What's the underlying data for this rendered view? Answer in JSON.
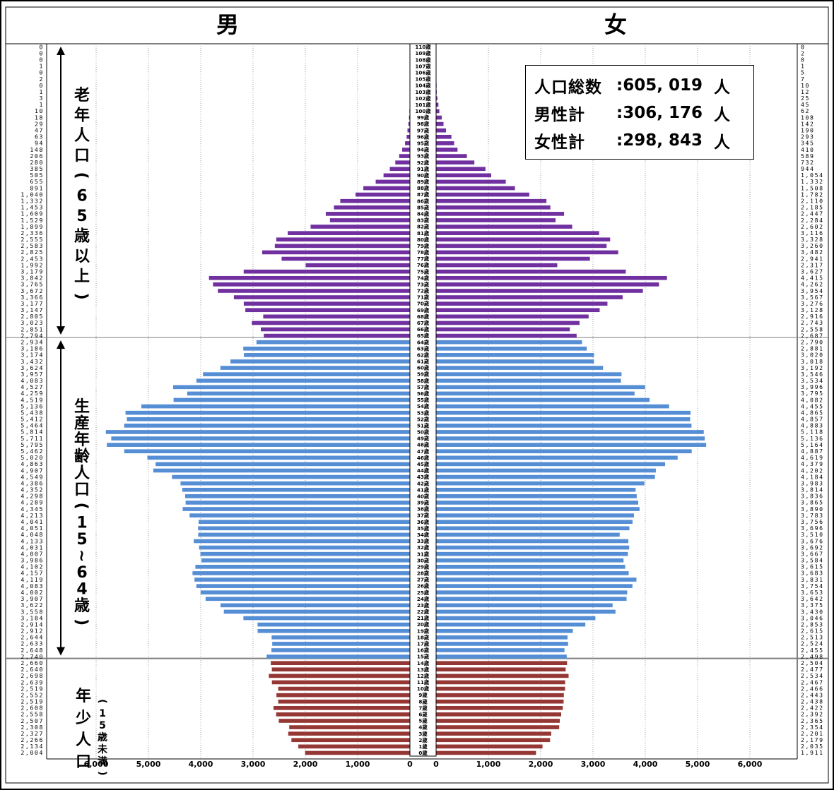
{
  "chart_data": {
    "type": "bar",
    "title_male": "男",
    "title_female": "女",
    "age_labels": [
      "0歳",
      "1歳",
      "2歳",
      "3歳",
      "4歳",
      "5歳",
      "6歳",
      "7歳",
      "8歳",
      "9歳",
      "10歳",
      "11歳",
      "12歳",
      "13歳",
      "14歳",
      "15歳",
      "16歳",
      "17歳",
      "18歳",
      "19歳",
      "20歳",
      "21歳",
      "22歳",
      "23歳",
      "24歳",
      "25歳",
      "26歳",
      "27歳",
      "28歳",
      "29歳",
      "30歳",
      "31歳",
      "32歳",
      "33歳",
      "34歳",
      "35歳",
      "36歳",
      "37歳",
      "38歳",
      "39歳",
      "40歳",
      "41歳",
      "42歳",
      "43歳",
      "44歳",
      "45歳",
      "46歳",
      "47歳",
      "48歳",
      "49歳",
      "50歳",
      "51歳",
      "52歳",
      "53歳",
      "54歳",
      "55歳",
      "56歳",
      "57歳",
      "58歳",
      "59歳",
      "60歳",
      "61歳",
      "62歳",
      "63歳",
      "64歳",
      "65歳",
      "66歳",
      "67歳",
      "68歳",
      "69歳",
      "70歳",
      "71歳",
      "72歳",
      "73歳",
      "74歳",
      "75歳",
      "76歳",
      "77歳",
      "78歳",
      "79歳",
      "80歳",
      "81歳",
      "82歳",
      "83歳",
      "84歳",
      "85歳",
      "86歳",
      "87歳",
      "88歳",
      "89歳",
      "90歳",
      "91歳",
      "92歳",
      "93歳",
      "94歳",
      "95歳",
      "96歳",
      "97歳",
      "98歳",
      "99歳",
      "100歳",
      "101歳",
      "102歳",
      "103歳",
      "104歳",
      "105歳",
      "106歳",
      "107歳",
      "108歳",
      "109歳",
      "110歳"
    ],
    "male_values": [
      2004,
      2134,
      2266,
      2327,
      2308,
      2507,
      2558,
      2608,
      2519,
      2552,
      2519,
      2639,
      2698,
      2640,
      2660,
      2740,
      2648,
      2633,
      2644,
      2912,
      2914,
      3184,
      3558,
      3622,
      3907,
      4002,
      4083,
      4119,
      4157,
      4102,
      3986,
      4007,
      4031,
      4133,
      4048,
      4051,
      4041,
      4213,
      4345,
      4289,
      4298,
      4352,
      4386,
      4549,
      4907,
      4863,
      5020,
      5462,
      5795,
      5711,
      5814,
      5464,
      5412,
      5438,
      5136,
      4519,
      4259,
      4527,
      4083,
      3957,
      3624,
      3432,
      3174,
      3186,
      2934,
      2794,
      2851,
      3023,
      2805,
      3147,
      3177,
      3366,
      3672,
      3765,
      3842,
      3179,
      1992,
      2453,
      2825,
      2583,
      2555,
      2336,
      1899,
      1529,
      1609,
      1453,
      1332,
      1040,
      891,
      655,
      505,
      385,
      280,
      206,
      148,
      94,
      63,
      47,
      29,
      18,
      10,
      1,
      3,
      1,
      0,
      2,
      0,
      1,
      0,
      0,
      0
    ],
    "male_labels": [
      "2,004",
      "2,134",
      "2,266",
      "2,327",
      "2,308",
      "2,507",
      "2,558",
      "2,608",
      "2,519",
      "2,552",
      "2,519",
      "2,639",
      "2,698",
      "2,640",
      "2,660",
      "2,740",
      "2,648",
      "2,633",
      "2,644",
      "2,912",
      "2,914",
      "3,184",
      "3,558",
      "3,622",
      "3,907",
      "4,002",
      "4,083",
      "4,119",
      "4,157",
      "4,102",
      "3,986",
      "4,007",
      "4,031",
      "4,133",
      "4,048",
      "4,051",
      "4,041",
      "4,213",
      "4,345",
      "4,289",
      "4,298",
      "4,352",
      "4,386",
      "4,549",
      "4,907",
      "4,863",
      "5,020",
      "5,462",
      "5,795",
      "5,711",
      "5,814",
      "5,464",
      "5,412",
      "5,438",
      "5,136",
      "4,519",
      "4,259",
      "4,527",
      "4,083",
      "3,957",
      "3,624",
      "3,432",
      "3,174",
      "3,186",
      "2,934",
      "2,794",
      "2,851",
      "3,023",
      "2,805",
      "3,147",
      "3,177",
      "3,366",
      "3,672",
      "3,765",
      "3,842",
      "3,179",
      "1,992",
      "2,453",
      "2,825",
      "2,583",
      "2,555",
      "2,336",
      "1,899",
      "1,529",
      "1,609",
      "1,453",
      "1,332",
      "1,040",
      "891",
      "655",
      "505",
      "385",
      "280",
      "206",
      "148",
      "94",
      "63",
      "47",
      "29",
      "18",
      "10",
      "1",
      "3",
      "1",
      "0",
      "2",
      "0",
      "1",
      "0",
      "0",
      "0"
    ],
    "female_values": [
      1911,
      2035,
      2179,
      2201,
      2354,
      2365,
      2392,
      2422,
      2438,
      2443,
      2466,
      2467,
      2534,
      2477,
      2504,
      2498,
      2455,
      2524,
      2513,
      2615,
      2853,
      3046,
      3430,
      3375,
      3642,
      3653,
      3754,
      3831,
      3683,
      3615,
      3584,
      3667,
      3692,
      3676,
      3510,
      3696,
      3756,
      3783,
      3890,
      3865,
      3836,
      3814,
      3983,
      4184,
      4202,
      4379,
      4619,
      4887,
      5164,
      5136,
      5118,
      4883,
      4857,
      4865,
      4455,
      4082,
      3795,
      3996,
      3534,
      3546,
      3192,
      3018,
      3020,
      2881,
      2790,
      2687,
      2558,
      2743,
      2916,
      3128,
      3276,
      3567,
      3954,
      4262,
      4415,
      3627,
      2317,
      2941,
      3482,
      3260,
      3328,
      3116,
      2602,
      2284,
      2447,
      2185,
      2110,
      1782,
      1508,
      1332,
      1054,
      944,
      732,
      589,
      410,
      345,
      293,
      190,
      142,
      108,
      62,
      45,
      25,
      12,
      10,
      7,
      5,
      1,
      0,
      2,
      0
    ],
    "female_labels": [
      "1,911",
      "2,035",
      "2,179",
      "2,201",
      "2,354",
      "2,365",
      "2,392",
      "2,422",
      "2,438",
      "2,443",
      "2,466",
      "2,467",
      "2,534",
      "2,477",
      "2,504",
      "2,498",
      "2,455",
      "2,524",
      "2,513",
      "2,615",
      "2,853",
      "3,046",
      "3,430",
      "3,375",
      "3,642",
      "3,653",
      "3,754",
      "3,831",
      "3,683",
      "3,615",
      "3,584",
      "3,667",
      "3,692",
      "3,676",
      "3,510",
      "3,696",
      "3,756",
      "3,783",
      "3,890",
      "3,865",
      "3,836",
      "3,814",
      "3,983",
      "4,184",
      "4,202",
      "4,379",
      "4,619",
      "4,887",
      "5,164",
      "5,136",
      "5,118",
      "4,883",
      "4,857",
      "4,865",
      "4,455",
      "4,082",
      "3,795",
      "3,996",
      "3,534",
      "3,546",
      "3,192",
      "3,018",
      "3,020",
      "2,881",
      "2,790",
      "2,687",
      "2,558",
      "2,743",
      "2,916",
      "3,128",
      "3,276",
      "3,567",
      "3,954",
      "4,262",
      "4,415",
      "3,627",
      "2,317",
      "2,941",
      "3,482",
      "3,260",
      "3,328",
      "3,116",
      "2,602",
      "2,284",
      "2,447",
      "2,185",
      "2,110",
      "1,782",
      "1,508",
      "1,332",
      "1,054",
      "944",
      "732",
      "589",
      "410",
      "345",
      "293",
      "190",
      "142",
      "108",
      "62",
      "45",
      "25",
      "12",
      "10",
      "7",
      "5",
      "1",
      "0",
      "2",
      "0"
    ],
    "x_ticks_male": [
      "6,000",
      "5,000",
      "4,000",
      "3,000",
      "2,000",
      "1,000",
      "0"
    ],
    "x_ticks_female": [
      "0",
      "1,000",
      "2,000",
      "3,000",
      "4,000",
      "5,000",
      "6,000"
    ],
    "x_tick_values": [
      6000,
      5000,
      4000,
      3000,
      2000,
      1000,
      0
    ],
    "xlim": [
      0,
      6000
    ],
    "groups": [
      {
        "label": "老年人口(65歳以上)",
        "chars": [
          "老",
          "年",
          "人",
          "口",
          "(",
          "6",
          "5",
          "歳",
          "以",
          "上",
          ")"
        ],
        "age_from": 65,
        "age_to": 110,
        "color": "#7030a0"
      },
      {
        "label": "生産年齢人口(15~64歳)",
        "chars": [
          "生",
          "産",
          "年",
          "齢",
          "人",
          "口",
          "(",
          "1",
          "5",
          "~",
          "6",
          "4",
          "歳",
          ")"
        ],
        "age_from": 15,
        "age_to": 64,
        "color": "#558ed5"
      },
      {
        "label": "年少人口",
        "chars": [
          "年",
          "少",
          "人",
          "口"
        ],
        "sub_chars": [
          "(",
          "1",
          "5",
          "歳",
          "未",
          "満",
          ")"
        ],
        "age_from": 0,
        "age_to": 14,
        "color": "#953735"
      }
    ],
    "grid": true
  },
  "summary": {
    "total_label": "人口総数",
    "total_value": ":605, 019",
    "male_label": "男性計",
    "male_value": ":306, 176",
    "female_label": "女性計",
    "female_value": ":298, 843",
    "unit": "人"
  }
}
